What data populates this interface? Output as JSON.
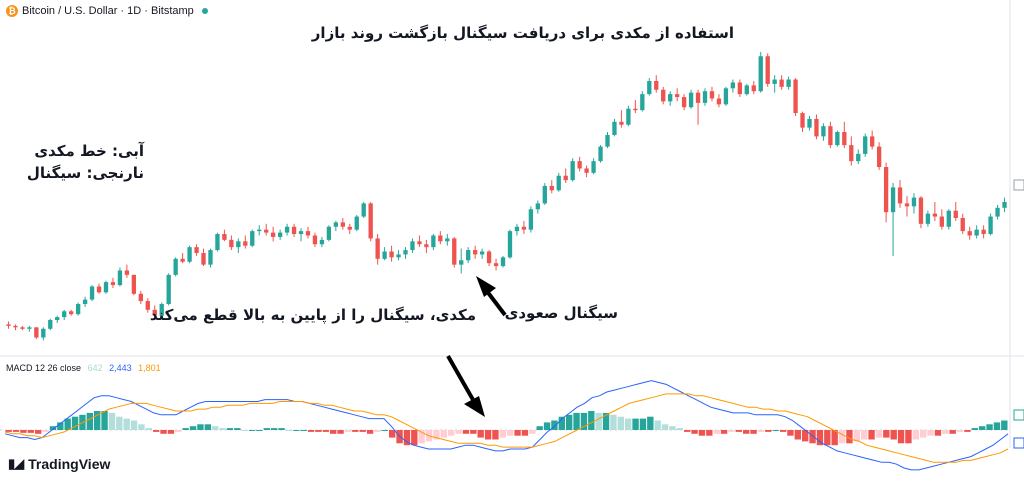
{
  "header": {
    "symbol": "Bitcoin / U.S. Dollar · 1D · Bitstamp",
    "icon": "bitcoin-icon",
    "live_color": "#26a69a"
  },
  "macd_legend": {
    "label": "MACD 12 26 close",
    "hist_value": "642",
    "macd_value": "2,443",
    "signal_value": "1,801",
    "hist_color": "#a8d8d4",
    "macd_color": "#2962ff",
    "signal_color": "#ff9800"
  },
  "annotations": {
    "title": "استفاده از مکدی برای دریافت سیگنال  بازگشت روند بازار",
    "legend_blue": "آبی: خط مکدی",
    "legend_orange": "نارنجی: سیگنال",
    "signal_label": "سیگنال صعودی",
    "signal_desc": "مکدی، سیگنال را از پایین به بالا قطع می‌کند"
  },
  "branding": {
    "logo_text": "TradingView",
    "logo_icon": "tradingview-icon"
  },
  "colors": {
    "up": "#26a69a",
    "down": "#ef5350",
    "hist_up_strong": "#26a69a",
    "hist_up_weak": "#b2dfdb",
    "hist_down_strong": "#ef5350",
    "hist_down_weak": "#ffcdd2"
  },
  "chart_data": [
    {
      "type": "candlestick",
      "title": "",
      "ohlc": [
        [
          43,
          45,
          40,
          42
        ],
        [
          42,
          43,
          39,
          41
        ],
        [
          41,
          42,
          39,
          40
        ],
        [
          40,
          42,
          38,
          41
        ],
        [
          41,
          41,
          33,
          34
        ],
        [
          34,
          41,
          32,
          40
        ],
        [
          40,
          47,
          39,
          46
        ],
        [
          46,
          49,
          44,
          48
        ],
        [
          48,
          53,
          46,
          52
        ],
        [
          52,
          53,
          49,
          50
        ],
        [
          50,
          58,
          49,
          57
        ],
        [
          57,
          62,
          55,
          60
        ],
        [
          60,
          70,
          59,
          69
        ],
        [
          69,
          71,
          64,
          65
        ],
        [
          65,
          73,
          64,
          72
        ],
        [
          72,
          75,
          68,
          70
        ],
        [
          70,
          82,
          69,
          80
        ],
        [
          80,
          84,
          75,
          77
        ],
        [
          77,
          77,
          63,
          64
        ],
        [
          64,
          66,
          57,
          59
        ],
        [
          59,
          61,
          51,
          53
        ],
        [
          53,
          56,
          47,
          49
        ],
        [
          49,
          58,
          48,
          57
        ],
        [
          57,
          78,
          56,
          77
        ],
        [
          77,
          89,
          76,
          88
        ],
        [
          88,
          92,
          85,
          86
        ],
        [
          86,
          97,
          85,
          96
        ],
        [
          96,
          98,
          90,
          92
        ],
        [
          92,
          95,
          83,
          84
        ],
        [
          84,
          95,
          82,
          94
        ],
        [
          94,
          106,
          93,
          105
        ],
        [
          105,
          108,
          100,
          101
        ],
        [
          101,
          104,
          94,
          96
        ],
        [
          96,
          102,
          92,
          100
        ],
        [
          100,
          104,
          95,
          97
        ],
        [
          97,
          108,
          96,
          107
        ],
        [
          107,
          111,
          104,
          108
        ],
        [
          108,
          112,
          104,
          106
        ],
        [
          106,
          110,
          100,
          103
        ],
        [
          103,
          108,
          101,
          106
        ],
        [
          106,
          112,
          104,
          110
        ],
        [
          110,
          112,
          103,
          105
        ],
        [
          105,
          109,
          100,
          107
        ],
        [
          107,
          110,
          102,
          104
        ],
        [
          104,
          106,
          96,
          98
        ],
        [
          98,
          103,
          96,
          101
        ],
        [
          101,
          111,
          100,
          110
        ],
        [
          110,
          114,
          107,
          113
        ],
        [
          113,
          116,
          108,
          110
        ],
        [
          110,
          112,
          105,
          108
        ],
        [
          108,
          118,
          107,
          117
        ],
        [
          117,
          127,
          116,
          126
        ],
        [
          126,
          127,
          100,
          102
        ],
        [
          102,
          105,
          84,
          88
        ],
        [
          88,
          96,
          87,
          93
        ],
        [
          93,
          97,
          86,
          89
        ],
        [
          89,
          94,
          87,
          91
        ],
        [
          91,
          96,
          88,
          94
        ],
        [
          94,
          102,
          92,
          100
        ],
        [
          100,
          104,
          96,
          98
        ],
        [
          98,
          101,
          92,
          96
        ],
        [
          96,
          105,
          94,
          104
        ],
        [
          104,
          107,
          98,
          100
        ],
        [
          100,
          105,
          97,
          102
        ],
        [
          102,
          103,
          82,
          84
        ],
        [
          84,
          95,
          78,
          87
        ],
        [
          87,
          96,
          85,
          94
        ],
        [
          94,
          97,
          88,
          91
        ],
        [
          91,
          95,
          88,
          93
        ],
        [
          93,
          94,
          83,
          85
        ],
        [
          85,
          88,
          80,
          83
        ],
        [
          83,
          90,
          82,
          89
        ],
        [
          89,
          108,
          88,
          107
        ],
        [
          107,
          112,
          104,
          110
        ],
        [
          110,
          114,
          105,
          108
        ],
        [
          108,
          124,
          106,
          122
        ],
        [
          122,
          128,
          119,
          126
        ],
        [
          126,
          140,
          125,
          138
        ],
        [
          138,
          142,
          133,
          135
        ],
        [
          135,
          147,
          134,
          145
        ],
        [
          145,
          150,
          140,
          142
        ],
        [
          142,
          157,
          141,
          155
        ],
        [
          155,
          158,
          148,
          150
        ],
        [
          150,
          152,
          144,
          147
        ],
        [
          147,
          157,
          146,
          155
        ],
        [
          155,
          166,
          154,
          165
        ],
        [
          165,
          175,
          164,
          173
        ],
        [
          173,
          184,
          172,
          182
        ],
        [
          182,
          190,
          178,
          180
        ],
        [
          180,
          193,
          179,
          191
        ],
        [
          191,
          197,
          188,
          190
        ],
        [
          190,
          203,
          189,
          201
        ],
        [
          201,
          212,
          200,
          210
        ],
        [
          210,
          214,
          202,
          204
        ],
        [
          204,
          206,
          194,
          196
        ],
        [
          196,
          203,
          193,
          201
        ],
        [
          201,
          205,
          196,
          199
        ],
        [
          199,
          201,
          190,
          192
        ],
        [
          192,
          204,
          191,
          202
        ],
        [
          202,
          204,
          180,
          195
        ],
        [
          195,
          205,
          193,
          203
        ],
        [
          203,
          206,
          196,
          198
        ],
        [
          198,
          201,
          192,
          194
        ],
        [
          194,
          206,
          193,
          205
        ],
        [
          205,
          211,
          202,
          209
        ],
        [
          209,
          211,
          199,
          201
        ],
        [
          201,
          208,
          200,
          207
        ],
        [
          207,
          210,
          201,
          203
        ],
        [
          203,
          230,
          202,
          227
        ],
        [
          227,
          229,
          206,
          208
        ],
        [
          208,
          214,
          202,
          211
        ],
        [
          211,
          214,
          204,
          206
        ],
        [
          206,
          213,
          204,
          211
        ],
        [
          211,
          212,
          186,
          188
        ],
        [
          188,
          189,
          175,
          178
        ],
        [
          178,
          186,
          176,
          184
        ],
        [
          184,
          187,
          170,
          172
        ],
        [
          172,
          181,
          169,
          179
        ],
        [
          179,
          182,
          164,
          166
        ],
        [
          166,
          176,
          165,
          175
        ],
        [
          175,
          182,
          164,
          166
        ],
        [
          166,
          172,
          152,
          155
        ],
        [
          155,
          163,
          153,
          160
        ],
        [
          160,
          174,
          158,
          172
        ],
        [
          172,
          176,
          163,
          165
        ],
        [
          165,
          168,
          149,
          151
        ],
        [
          151,
          154,
          113,
          120
        ],
        [
          120,
          140,
          90,
          137
        ],
        [
          137,
          142,
          123,
          126
        ],
        [
          126,
          131,
          117,
          124
        ],
        [
          124,
          133,
          119,
          130
        ],
        [
          130,
          131,
          109,
          112
        ],
        [
          112,
          121,
          110,
          119
        ],
        [
          119,
          127,
          114,
          117
        ],
        [
          117,
          122,
          108,
          110
        ],
        [
          110,
          122,
          108,
          121
        ],
        [
          121,
          127,
          114,
          116
        ],
        [
          116,
          119,
          105,
          107
        ],
        [
          107,
          110,
          101,
          104
        ],
        [
          104,
          111,
          102,
          108
        ],
        [
          108,
          111,
          102,
          105
        ],
        [
          105,
          119,
          104,
          117
        ],
        [
          117,
          125,
          115,
          123
        ],
        [
          123,
          130,
          120,
          127
        ]
      ],
      "price_range": [
        22,
        245
      ],
      "macd_hist": [
        -1,
        -1,
        -1.5,
        -1.5,
        -2,
        -1,
        2,
        4,
        6,
        7,
        8,
        9,
        10,
        10,
        9,
        7,
        6,
        5,
        3,
        1,
        -1,
        -2,
        -2,
        -1,
        1,
        2,
        3,
        3,
        2,
        1,
        1,
        1,
        0,
        0,
        0,
        1,
        1,
        1,
        0,
        0,
        0,
        -1,
        -1,
        -1,
        -2,
        -2,
        -1,
        -1,
        -1,
        -2,
        -1,
        0,
        -4,
        -7,
        -8,
        -8,
        -7,
        -6,
        -5,
        -4,
        -3,
        -2,
        -2,
        -2,
        -4,
        -5,
        -5,
        -4,
        -3,
        -3,
        -3,
        -2,
        2,
        4,
        5,
        7,
        8,
        9,
        9,
        10,
        9,
        9,
        8,
        7,
        6,
        6,
        6,
        7,
        5,
        3,
        2,
        1,
        -1,
        -2,
        -3,
        -3,
        -2,
        -2,
        -1,
        -1,
        -2,
        -2,
        -1,
        -1,
        0,
        -1,
        -3,
        -5,
        -6,
        -7,
        -8,
        -8,
        -8,
        -7,
        -7,
        -6,
        -5,
        -5,
        -4,
        -4,
        -5,
        -7,
        -7,
        -5,
        -4,
        -3,
        -3,
        -2,
        -2,
        -1,
        -1,
        1,
        2,
        3,
        4,
        5
      ],
      "macd_line": [
        -2,
        -3,
        -4,
        -4,
        -5,
        -4,
        -1,
        2,
        5,
        8,
        11,
        14,
        17,
        18,
        18,
        17,
        16,
        15,
        13,
        11,
        9,
        8,
        8,
        8,
        10,
        12,
        14,
        15,
        15,
        15,
        15,
        15,
        15,
        15,
        15,
        16,
        16,
        16,
        16,
        15,
        15,
        14,
        13,
        12,
        11,
        10,
        9,
        8,
        7,
        6,
        6,
        6,
        2,
        -3,
        -6,
        -8,
        -9,
        -10,
        -10,
        -10,
        -10,
        -9,
        -8,
        -8,
        -9,
        -10,
        -11,
        -11,
        -10,
        -10,
        -10,
        -9,
        -5,
        -1,
        2,
        6,
        9,
        12,
        14,
        17,
        18,
        20,
        21,
        22,
        23,
        24,
        25,
        26,
        25,
        24,
        22,
        20,
        18,
        16,
        14,
        12,
        11,
        10,
        9,
        9,
        9,
        8,
        8,
        8,
        8,
        7,
        5,
        2,
        -1,
        -4,
        -7,
        -9,
        -11,
        -12,
        -13,
        -14,
        -15,
        -16,
        -17,
        -17,
        -18,
        -20,
        -21,
        -21,
        -20,
        -19,
        -18,
        -17,
        -16,
        -15,
        -14,
        -12,
        -10,
        -8,
        -5,
        -2
      ],
      "signal_line": [
        -1,
        -2,
        -2,
        -3,
        -3,
        -4,
        -3,
        -2,
        -1,
        1,
        3,
        5,
        7,
        9,
        11,
        12,
        13,
        14,
        14,
        14,
        13,
        12,
        11,
        10,
        10,
        10,
        11,
        11,
        12,
        12,
        13,
        13,
        13,
        14,
        14,
        14,
        14,
        15,
        15,
        15,
        15,
        14,
        14,
        13,
        13,
        12,
        11,
        10,
        10,
        9,
        8,
        8,
        7,
        5,
        3,
        1,
        -1,
        -3,
        -4,
        -5,
        -6,
        -7,
        -7,
        -7,
        -7,
        -8,
        -8,
        -9,
        -9,
        -9,
        -9,
        -9,
        -8,
        -7,
        -6,
        -4,
        -2,
        0,
        2,
        4,
        6,
        8,
        10,
        12,
        14,
        15,
        16,
        17,
        18,
        19,
        19,
        19,
        19,
        18,
        18,
        17,
        16,
        15,
        14,
        13,
        12,
        12,
        11,
        11,
        10,
        10,
        9,
        8,
        7,
        5,
        3,
        1,
        -1,
        -3,
        -5,
        -6,
        -8,
        -9,
        -10,
        -11,
        -12,
        -13,
        -14,
        -15,
        -16,
        -17,
        -17,
        -17,
        -17,
        -16,
        -16,
        -15,
        -14,
        -13,
        -12,
        -10
      ]
    }
  ]
}
